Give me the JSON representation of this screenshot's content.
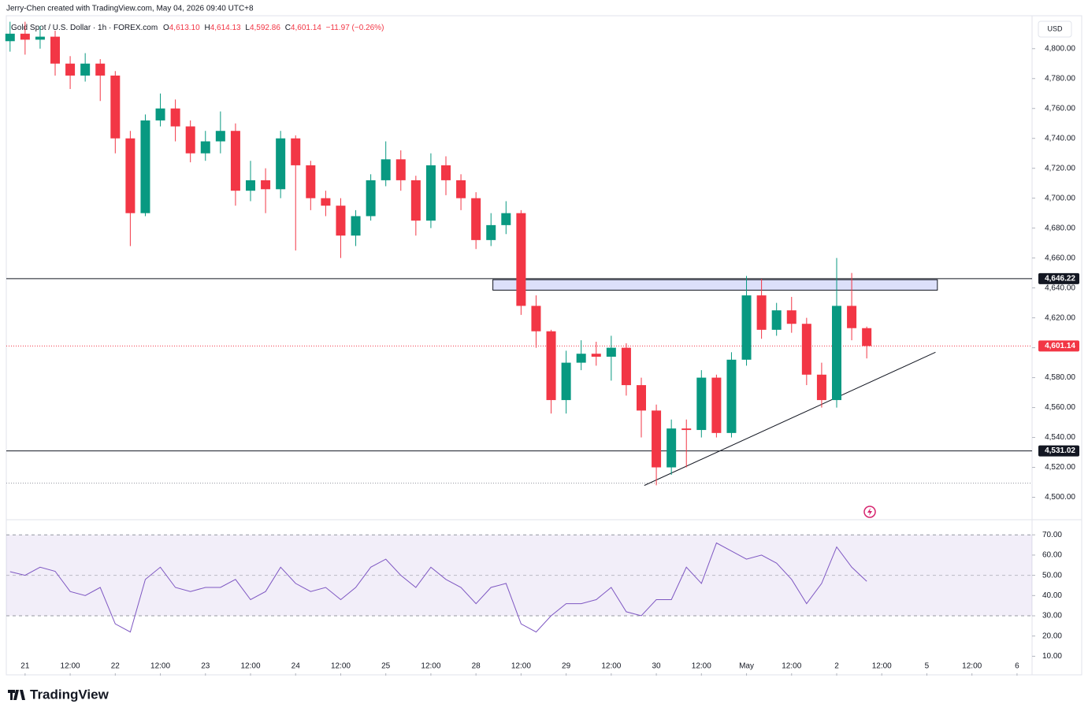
{
  "header": {
    "credit": "Jerry-Chen created with TradingView.com, May 04, 2026 09:40 UTC+8",
    "symbol": "Gold Spot / U.S. Dollar · 1h · FOREX.com",
    "o_label": "O",
    "o": "4,613.10",
    "h_label": "H",
    "h": "4,614.13",
    "l_label": "L",
    "l": "4,592.86",
    "c_label": "C",
    "c": "4,601.14",
    "change": "−11.97 (−0.26%)",
    "currency": "USD",
    "logo": "TradingView"
  },
  "chart_data": {
    "type": "candlestick",
    "x": [
      -4,
      0,
      4,
      8,
      12,
      16,
      20,
      24,
      28,
      32,
      36,
      40,
      44,
      48,
      52,
      56,
      60,
      64,
      68,
      72,
      76,
      80,
      84,
      88,
      92,
      96,
      100,
      104,
      108,
      112,
      116,
      120,
      124,
      128,
      132,
      136,
      140,
      144,
      148,
      152,
      156,
      160,
      164,
      168,
      172,
      176,
      180,
      184,
      188,
      192,
      196,
      200,
      204,
      208,
      212,
      216,
      220,
      224
    ],
    "open": [
      4805,
      4810,
      4806,
      4808,
      4790,
      4782,
      4790,
      4782,
      4740,
      4690,
      4752,
      4760,
      4748,
      4730,
      4738,
      4745,
      4705,
      4712,
      4706,
      4740,
      4722,
      4700,
      4695,
      4675,
      4688,
      4712,
      4726,
      4712,
      4685,
      4722,
      4712,
      4700,
      4672,
      4682,
      4690,
      4628,
      4611,
      4565,
      4590,
      4596,
      4594,
      4600,
      4575,
      4558,
      4520,
      4546,
      4545,
      4580,
      4543,
      4592,
      4635,
      4612,
      4625,
      4616,
      4582,
      4565,
      4628,
      4613.1
    ],
    "high": [
      4818,
      4818,
      4815,
      4812,
      4795,
      4797,
      4793,
      4785,
      4745,
      4756,
      4770,
      4766,
      4752,
      4745,
      4758,
      4750,
      4725,
      4720,
      4745,
      4742,
      4725,
      4705,
      4700,
      4692,
      4716,
      4738,
      4732,
      4715,
      4730,
      4728,
      4716,
      4704,
      4690,
      4698,
      4692,
      4635,
      4612,
      4598,
      4605,
      4604,
      4608,
      4603,
      4580,
      4562,
      4552,
      4552,
      4585,
      4582,
      4597,
      4648,
      4646,
      4630,
      4634,
      4620,
      4590,
      4660,
      4650,
      4614.13
    ],
    "low": [
      4798,
      4796,
      4800,
      4782,
      4773,
      4778,
      4765,
      4730,
      4668,
      4688,
      4748,
      4738,
      4724,
      4725,
      4730,
      4695,
      4698,
      4690,
      4700,
      4665,
      4692,
      4688,
      4660,
      4668,
      4685,
      4708,
      4705,
      4675,
      4680,
      4702,
      4692,
      4666,
      4668,
      4676,
      4622,
      4600,
      4556,
      4556,
      4585,
      4588,
      4578,
      4568,
      4540,
      4508,
      4515,
      4520,
      4540,
      4540,
      4540,
      4588,
      4606,
      4608,
      4610,
      4575,
      4560,
      4560,
      4605,
      4592.86
    ],
    "close": [
      4810,
      4806,
      4808,
      4790,
      4782,
      4790,
      4782,
      4740,
      4690,
      4752,
      4760,
      4748,
      4730,
      4738,
      4745,
      4705,
      4712,
      4706,
      4740,
      4722,
      4700,
      4695,
      4675,
      4688,
      4712,
      4726,
      4712,
      4685,
      4722,
      4712,
      4700,
      4672,
      4682,
      4690,
      4628,
      4611,
      4565,
      4590,
      4596,
      4594,
      4600,
      4575,
      4558,
      4520,
      4546,
      4545,
      4580,
      4543,
      4592,
      4635,
      4612,
      4625,
      4616,
      4582,
      4565,
      4628,
      4613.1,
      4601.14
    ],
    "up_color": "#089981",
    "down_color": "#f23645",
    "xlim": [
      -5,
      268
    ],
    "xticks": [
      {
        "value": 0,
        "label": "21"
      },
      {
        "value": 12,
        "label": "12:00"
      },
      {
        "value": 24,
        "label": "22"
      },
      {
        "value": 36,
        "label": "12:00"
      },
      {
        "value": 48,
        "label": "23"
      },
      {
        "value": 60,
        "label": "12:00"
      },
      {
        "value": 72,
        "label": "24"
      },
      {
        "value": 84,
        "label": "12:00"
      },
      {
        "value": 96,
        "label": "25"
      },
      {
        "value": 108,
        "label": "12:00"
      },
      {
        "value": 120,
        "label": "28"
      },
      {
        "value": 132,
        "label": "12:00"
      },
      {
        "value": 144,
        "label": "29"
      },
      {
        "value": 156,
        "label": "12:00"
      },
      {
        "value": 168,
        "label": "30"
      },
      {
        "value": 180,
        "label": "12:00"
      },
      {
        "value": 192,
        "label": "May"
      },
      {
        "value": 204,
        "label": "12:00"
      },
      {
        "value": 216,
        "label": "2"
      },
      {
        "value": 228,
        "label": "12:00"
      },
      {
        "value": 240,
        "label": "5"
      },
      {
        "value": 252,
        "label": "12:00"
      },
      {
        "value": 264,
        "label": "6"
      }
    ],
    "ylim": [
      4485,
      4822
    ],
    "yticks": [
      {
        "value": 4500,
        "label": "4,500.00"
      },
      {
        "value": 4520,
        "label": "4,520.00"
      },
      {
        "value": 4540,
        "label": "4,540.00"
      },
      {
        "value": 4560,
        "label": "4,560.00"
      },
      {
        "value": 4580,
        "label": "4,580.00"
      },
      {
        "value": 4600,
        "label": "4,600.00"
      },
      {
        "value": 4620,
        "label": "4,620.00"
      },
      {
        "value": 4640,
        "label": "4,640.00"
      },
      {
        "value": 4660,
        "label": "4,660.00"
      },
      {
        "value": 4680,
        "label": "4,680.00"
      },
      {
        "value": 4700,
        "label": "4,700.00"
      },
      {
        "value": 4720,
        "label": "4,720.00"
      },
      {
        "value": 4740,
        "label": "4,740.00"
      },
      {
        "value": 4760,
        "label": "4,760.00"
      },
      {
        "value": 4780,
        "label": "4,780.00"
      },
      {
        "value": 4800,
        "label": "4,800.00"
      }
    ],
    "levels": [
      {
        "value": 4646.22,
        "label": "4,646.22",
        "color": "#131722",
        "style": "solid"
      },
      {
        "value": 4531.02,
        "label": "4,531.02",
        "color": "#131722",
        "style": "solid"
      },
      {
        "value": 4601.14,
        "label": "4,601.14",
        "color": "#f23645",
        "style": "dotted"
      }
    ],
    "low_line": {
      "value": 4509.5,
      "color": "#9598a1"
    },
    "zone": {
      "x": [
        124.5,
        242.8
      ],
      "y": [
        4638.5,
        4645.5
      ],
      "color": "#c5cbf7"
    },
    "trendline": {
      "x": [
        164.8,
        242.3
      ],
      "y": [
        4507.9,
        4597
      ],
      "color": "#131722"
    },
    "rsi": {
      "values": [
        51.8,
        50,
        54,
        52,
        42,
        40,
        44,
        26,
        22,
        48,
        54,
        44,
        42,
        44,
        44,
        48,
        38,
        42,
        54,
        46,
        42,
        44,
        38,
        44,
        54,
        58,
        50,
        44,
        54,
        48,
        44,
        36,
        44,
        46,
        26,
        22,
        30,
        36,
        36,
        38,
        44,
        32,
        30,
        38,
        38,
        54,
        46,
        66,
        62,
        58,
        60,
        56,
        48,
        36,
        46,
        64,
        54,
        47
      ],
      "color": "#7e57c2",
      "ylim": [
        1.6,
        76.7
      ],
      "band": [
        30,
        70
      ],
      "yticks": [
        {
          "value": 10,
          "label": "10.00"
        },
        {
          "value": 20,
          "label": "20.00"
        },
        {
          "value": 30,
          "label": "30.00"
        },
        {
          "value": 40,
          "label": "40.00"
        },
        {
          "value": 50,
          "label": "50.00"
        },
        {
          "value": 60,
          "label": "60.00"
        },
        {
          "value": 70,
          "label": "70.00"
        }
      ]
    }
  }
}
